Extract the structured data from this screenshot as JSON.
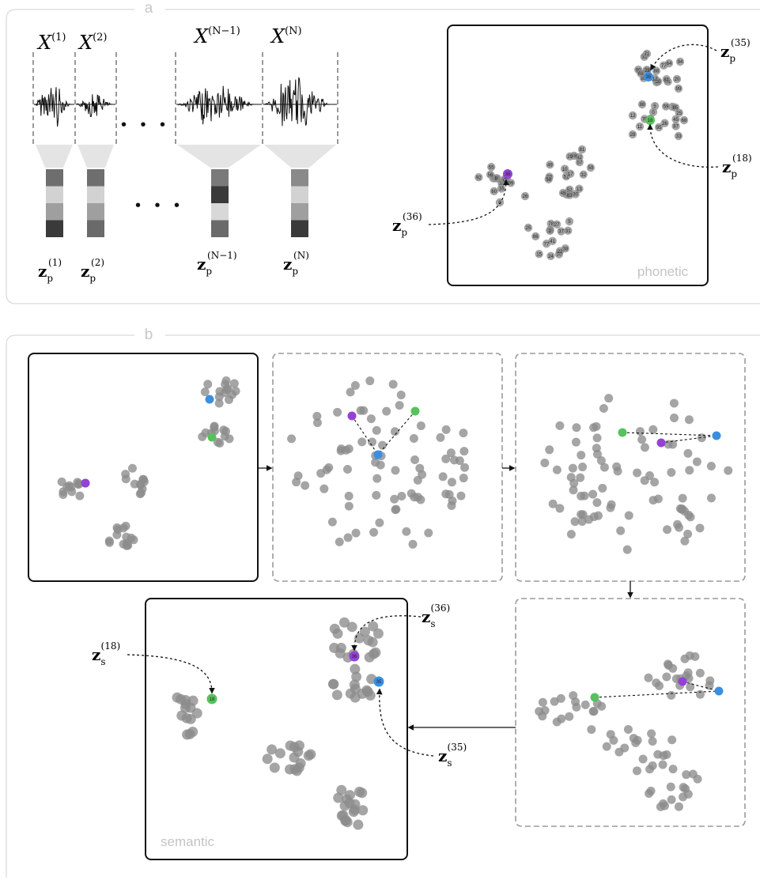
{
  "panel_a": {
    "letter": "a",
    "segments": [
      {
        "label": "X",
        "sup": "(1)"
      },
      {
        "label": "X",
        "sup": "(2)"
      },
      {
        "label": "X",
        "sup": "(N−1)"
      },
      {
        "label": "X",
        "sup": "(N)"
      }
    ],
    "dots_top": "• • •",
    "dots_bottom": "• • •",
    "embeddings": [
      {
        "label": "z",
        "sub": "p",
        "sup": "(1)"
      },
      {
        "label": "z",
        "sub": "p",
        "sup": "(2)"
      },
      {
        "label": "z",
        "sub": "p",
        "sup": "(N−1)"
      },
      {
        "label": "z",
        "sub": "p",
        "sup": "(N)"
      }
    ],
    "scatter_label": "phonetic",
    "callouts": [
      {
        "label": "z",
        "sub": "p",
        "sup": "(35)"
      },
      {
        "label": "z",
        "sub": "p",
        "sup": "(18)"
      },
      {
        "label": "z",
        "sub": "p",
        "sup": "(36)"
      }
    ],
    "highlight_ids": [
      "35",
      "18",
      "36"
    ],
    "point_ids": [
      "77",
      "71",
      "64",
      "94",
      "20",
      "99",
      "88",
      "85",
      "12",
      "68",
      "28",
      "33",
      "81",
      "59",
      "45",
      "26",
      "0",
      "5",
      "25",
      "53",
      "87",
      "1",
      "11",
      "70",
      "95",
      "57",
      "13",
      "51",
      "9",
      "79",
      "49",
      "42",
      "48",
      "52",
      "17",
      "58",
      "10",
      "32",
      "29",
      "30",
      "63",
      "39",
      "16",
      "14",
      "76",
      "65",
      "56",
      "91",
      "55",
      "92",
      "60",
      "69",
      "21",
      "8",
      "99",
      "24",
      "41",
      "50",
      "78",
      "15",
      "18",
      "27",
      "31",
      "38",
      "2",
      "22",
      "86",
      "37"
    ]
  },
  "panel_b": {
    "letter": "b",
    "scatter_label": "semantic",
    "highlight_ids": [
      "36",
      "35",
      "18"
    ],
    "callouts": [
      {
        "label": "z",
        "sub": "s",
        "sup": "(36)"
      },
      {
        "label": "z",
        "sub": "s",
        "sup": "(18)"
      },
      {
        "label": "z",
        "sub": "s",
        "sup": "(35)"
      }
    ]
  },
  "colors": {
    "blue": "#3b8fe0",
    "green": "#57c25d",
    "purple": "#9441d6",
    "gray_point": "#8c8c8c",
    "panel_border": "#d9d9d9",
    "letter": "#c8c8c8",
    "dashed_box": "#9a9a9a"
  }
}
